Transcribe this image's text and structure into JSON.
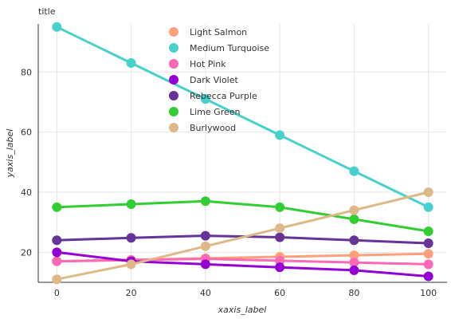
{
  "chart_data": {
    "type": "line",
    "title": "title",
    "xlabel": "xaxis_label",
    "ylabel": "yaxis_label",
    "x": [
      0,
      20,
      40,
      60,
      80,
      100
    ],
    "xticks": [
      0,
      20,
      40,
      60,
      80,
      100
    ],
    "yticks": [
      20,
      40,
      60,
      80
    ],
    "xlim": [
      -5,
      105
    ],
    "ylim": [
      10,
      96
    ],
    "grid": true,
    "legend_position": "top-right",
    "series": [
      {
        "name": "Light Salmon",
        "color": "#FFA07A",
        "values": [
          17.0,
          17.5,
          18.0,
          18.5,
          19.0,
          19.5
        ]
      },
      {
        "name": "Medium Turquoise",
        "color": "#48D1CC",
        "values": [
          95.0,
          83.0,
          71.0,
          59.0,
          47.0,
          35.0
        ]
      },
      {
        "name": "Hot Pink",
        "color": "#FF69B4",
        "values": [
          17.0,
          17.4,
          17.8,
          17.2,
          16.6,
          16.0
        ]
      },
      {
        "name": "Dark Violet",
        "color": "#9400D3",
        "values": [
          20.0,
          17.0,
          16.0,
          15.0,
          14.0,
          12.0
        ]
      },
      {
        "name": "Rebecca Purple",
        "color": "#663399",
        "values": [
          24.0,
          24.8,
          25.5,
          25.0,
          24.0,
          23.0
        ]
      },
      {
        "name": "Lime Green",
        "color": "#32CD32",
        "values": [
          35.0,
          36.0,
          37.0,
          35.0,
          31.0,
          27.0
        ]
      },
      {
        "name": "Burlywood",
        "color": "#DEB887",
        "values": [
          11.0,
          16.0,
          22.0,
          28.0,
          34.0,
          40.0
        ]
      }
    ]
  }
}
